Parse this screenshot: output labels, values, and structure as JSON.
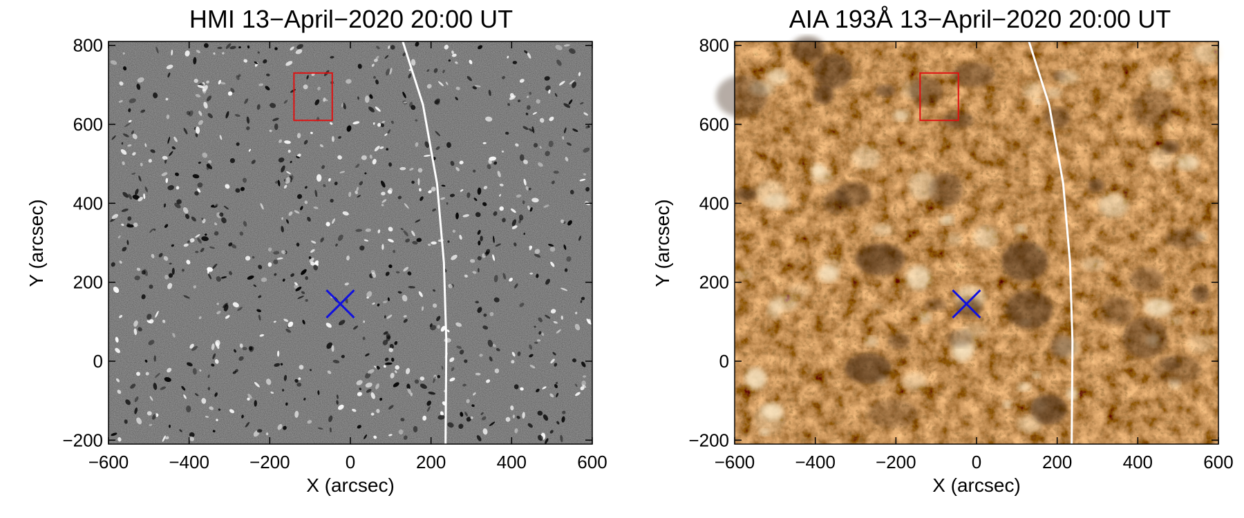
{
  "panels": [
    {
      "id": "hmi",
      "title": "HMI 13−April−2020 20:00 UT",
      "xlabel": "X (arcsec)",
      "ylabel": "Y (arcsec)",
      "xlim": [
        -600,
        600
      ],
      "ylim": [
        -210,
        810
      ],
      "xticks": [
        -600,
        -400,
        -200,
        0,
        200,
        400,
        600
      ],
      "xtick_labels": [
        "−600",
        "−400",
        "−200",
        "0",
        "200",
        "400",
        "600"
      ],
      "yticks": [
        -200,
        0,
        200,
        400,
        600,
        800
      ],
      "ytick_labels": [
        "−200",
        "0",
        "200",
        "400",
        "600",
        "800"
      ],
      "image_style": "grayscale magnetogram",
      "colors": {
        "background": "#8a8a8a",
        "positive": "#ffffff",
        "negative": "#000000"
      },
      "overlays": {
        "box": {
          "x": [
            -140,
            -45
          ],
          "y": [
            610,
            730
          ],
          "color": "#e01010"
        },
        "marker": {
          "x": -25,
          "y": 145,
          "symbol": "x",
          "color": "#1010e0"
        },
        "limb_curve": {
          "color": "#ffffff",
          "points": [
            [
              130,
              810
            ],
            [
              180,
              650
            ],
            [
              215,
              450
            ],
            [
              232,
              250
            ],
            [
              238,
              50
            ],
            [
              236,
              -210
            ]
          ]
        }
      }
    },
    {
      "id": "aia",
      "title": "AIA 193Å 13−April−2020 20:00 UT",
      "xlabel": "X (arcsec)",
      "ylabel": "Y (arcsec)",
      "xlim": [
        -600,
        600
      ],
      "ylim": [
        -210,
        810
      ],
      "xticks": [
        -600,
        -400,
        -200,
        0,
        200,
        400,
        600
      ],
      "xtick_labels": [
        "−600",
        "−400",
        "−200",
        "0",
        "200",
        "400",
        "600"
      ],
      "yticks": [
        -200,
        0,
        200,
        400,
        600,
        800
      ],
      "ytick_labels": [
        "−200",
        "0",
        "200",
        "400",
        "600",
        "800"
      ],
      "image_style": "EUV 193Å coronal image",
      "colors": {
        "background": "#8a5a25",
        "dark": "#3a2008",
        "bright": "#fff0d0"
      },
      "overlays": {
        "box": {
          "x": [
            -140,
            -45
          ],
          "y": [
            610,
            730
          ],
          "color": "#e01010"
        },
        "marker": {
          "x": -25,
          "y": 145,
          "symbol": "x",
          "color": "#1010e0"
        },
        "limb_curve": {
          "color": "#ffffff",
          "points": [
            [
              130,
              810
            ],
            [
              180,
              650
            ],
            [
              215,
              450
            ],
            [
              232,
              250
            ],
            [
              238,
              50
            ],
            [
              236,
              -210
            ]
          ]
        }
      }
    }
  ]
}
